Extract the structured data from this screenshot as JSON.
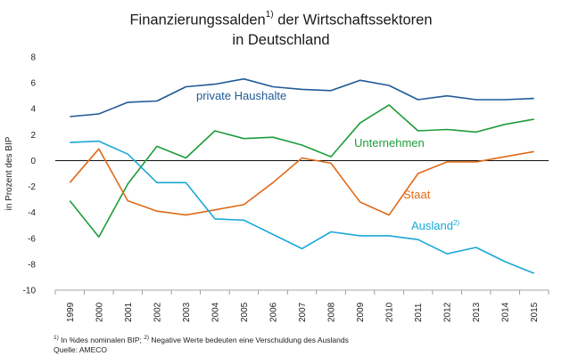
{
  "chart_data": {
    "type": "line",
    "title_line1": "Finanzierungssalden",
    "title_sup": "1)",
    "title_line1_rest": " der Wirtschaftssektoren",
    "title_line2": "in Deutschland",
    "ylabel": "in Prozent des BIP",
    "ylim": [
      -10,
      8
    ],
    "yticks": [
      8,
      6,
      4,
      2,
      0,
      -2,
      -4,
      -6,
      -8,
      -10
    ],
    "x": [
      "1999",
      "2000",
      "2001",
      "2002",
      "2003",
      "2004",
      "2005",
      "2006",
      "2007",
      "2008",
      "2009",
      "2010",
      "2011",
      "2012",
      "2013",
      "2014",
      "2015"
    ],
    "series": [
      {
        "name": "private Haushalte",
        "name_sup": "",
        "color": "#1f5a96",
        "values": [
          3.4,
          3.6,
          4.5,
          4.6,
          5.7,
          5.9,
          6.3,
          5.7,
          5.5,
          5.4,
          6.2,
          5.8,
          4.7,
          5.0,
          4.7,
          4.7,
          4.8
        ]
      },
      {
        "name": "Unternehmen",
        "name_sup": "",
        "color": "#1e9c3a",
        "values": [
          -3.1,
          -5.9,
          -1.8,
          1.1,
          0.2,
          2.3,
          1.7,
          1.8,
          1.2,
          0.3,
          2.9,
          4.3,
          2.3,
          2.4,
          2.2,
          2.8,
          3.2
        ]
      },
      {
        "name": "Staat",
        "name_sup": "",
        "color": "#e06a18",
        "values": [
          -1.7,
          0.9,
          -3.1,
          -3.9,
          -4.2,
          -3.8,
          -3.4,
          -1.7,
          0.2,
          -0.2,
          -3.2,
          -4.2,
          -1.0,
          -0.1,
          -0.1,
          0.3,
          0.7
        ]
      },
      {
        "name": "Ausland",
        "name_sup": "2)",
        "color": "#1ba8d6",
        "values": [
          1.4,
          1.5,
          0.5,
          -1.7,
          -1.7,
          -4.5,
          -4.6,
          -5.7,
          -6.8,
          -5.5,
          -5.8,
          -5.8,
          -6.1,
          -7.2,
          -6.7,
          -7.8,
          -8.7
        ]
      }
    ],
    "grid": false,
    "legend": "inline labels"
  },
  "footnote": {
    "line1_sup1": "1)",
    "line1_text1": " In %des nominalen BIP; ",
    "line1_sup2": "2)",
    "line1_text2": " Negative Werte bedeuten eine Verschuldung des Auslands",
    "line2": "Quelle: AMECO"
  }
}
